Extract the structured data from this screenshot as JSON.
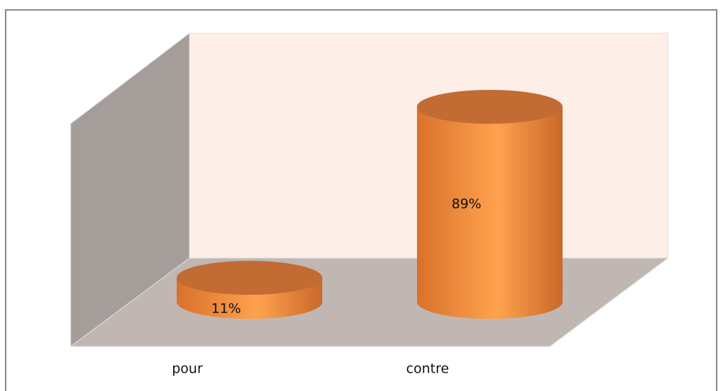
{
  "chart_data": {
    "type": "bar3d",
    "categories": [
      "pour",
      "contre"
    ],
    "values": [
      11,
      89
    ],
    "value_labels": [
      "11%",
      "89%"
    ],
    "color": "#f08a3c"
  }
}
